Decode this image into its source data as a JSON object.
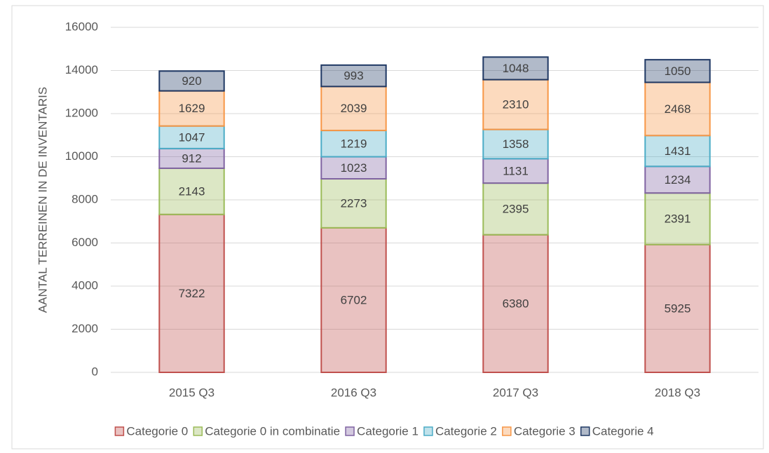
{
  "chart_data": {
    "type": "stacked_bar",
    "y_label": "AANTAL TERREINEN IN DE INVENTARIS",
    "categories": [
      "2015 Q3",
      "2016 Q3",
      "2017 Q3",
      "2018 Q3"
    ],
    "series": [
      {
        "name": "Categorie 0",
        "color": "#c0504d",
        "values": [
          7322,
          6702,
          6380,
          5925
        ]
      },
      {
        "name": "Categorie 0 in combinatie",
        "color": "#9bbb59",
        "values": [
          2143,
          2273,
          2395,
          2391
        ]
      },
      {
        "name": "Categorie 1",
        "color": "#8064a2",
        "values": [
          912,
          1023,
          1131,
          1234
        ]
      },
      {
        "name": "Categorie 2",
        "color": "#4bacc6",
        "values": [
          1047,
          1219,
          1358,
          1431
        ]
      },
      {
        "name": "Categorie 3",
        "color": "#f79646",
        "values": [
          1629,
          2039,
          2310,
          2468
        ]
      },
      {
        "name": "Categorie 4",
        "color": "#1f3864",
        "values": [
          920,
          993,
          1048,
          1050
        ]
      }
    ],
    "ylim": [
      0,
      16000
    ],
    "yticks": [
      0,
      2000,
      4000,
      6000,
      8000,
      10000,
      12000,
      14000,
      16000
    ],
    "grid": true,
    "legend": "bottom"
  }
}
